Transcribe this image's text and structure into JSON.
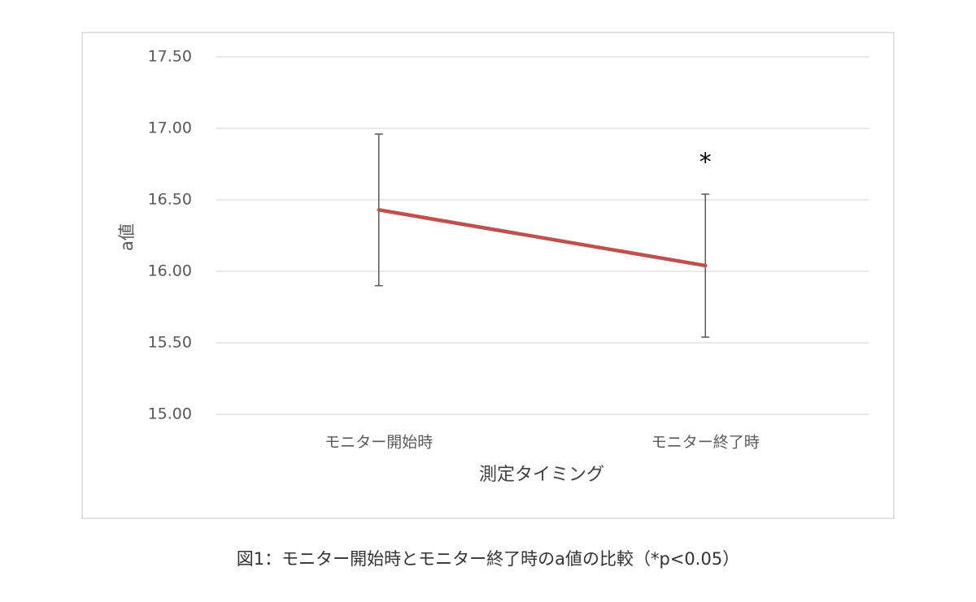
{
  "chart_data": {
    "type": "line",
    "categories": [
      "モニター開始時",
      "モニター終了時"
    ],
    "values": [
      16.43,
      16.04
    ],
    "errors": [
      0.53,
      0.5
    ],
    "color": "#c0504d",
    "error_color": "#595959",
    "ylim": [
      15,
      17.5
    ],
    "yticks": [
      {
        "value": 15,
        "label": "15.00"
      },
      {
        "value": 15.5,
        "label": "15.50"
      },
      {
        "value": 16,
        "label": "16.00"
      },
      {
        "value": 16.5,
        "label": "16.50"
      },
      {
        "value": 17,
        "label": "17.00"
      },
      {
        "value": 17.5,
        "label": "17.50"
      }
    ],
    "grid": true,
    "ylabel": "a値",
    "xlabel": "測定タイミング",
    "annotation": "*",
    "caption": "図1：モニター開始時とモニター終了時のa値の比較（*p<0.05）"
  }
}
